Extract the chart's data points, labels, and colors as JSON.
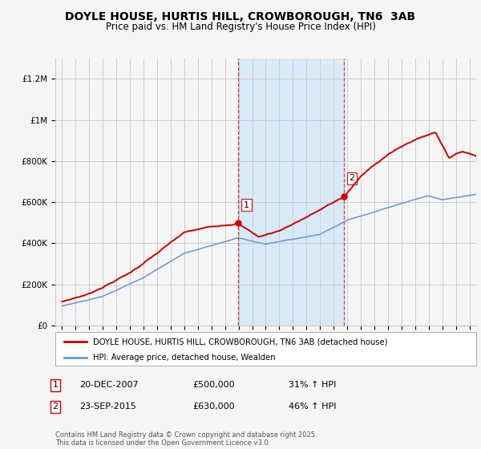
{
  "title": "DOYLE HOUSE, HURTIS HILL, CROWBOROUGH, TN6  3AB",
  "subtitle": "Price paid vs. HM Land Registry's House Price Index (HPI)",
  "footer": "Contains HM Land Registry data © Crown copyright and database right 2025.\nThis data is licensed under the Open Government Licence v3.0.",
  "legend_house": "DOYLE HOUSE, HURTIS HILL, CROWBOROUGH, TN6 3AB (detached house)",
  "legend_hpi": "HPI: Average price, detached house, Wealden",
  "sale1_date": "20-DEC-2007",
  "sale1_price": "£500,000",
  "sale1_hpi": "31% ↑ HPI",
  "sale2_date": "23-SEP-2015",
  "sale2_price": "£630,000",
  "sale2_hpi": "46% ↑ HPI",
  "sale1_x": 2007.97,
  "sale1_y": 500000,
  "sale2_x": 2015.73,
  "sale2_y": 630000,
  "vline1_x": 2007.97,
  "vline2_x": 2015.73,
  "ylim": [
    0,
    1300000
  ],
  "xlim": [
    1994.5,
    2025.5
  ],
  "house_color": "#cc0000",
  "hpi_color": "#6699cc",
  "vline_color": "#bb4444",
  "vline_shade_color": "#d8eaf8",
  "grid_color": "#cccccc",
  "bg_color": "#f5f5f5",
  "title_fontsize": 10,
  "subtitle_fontsize": 8.5
}
